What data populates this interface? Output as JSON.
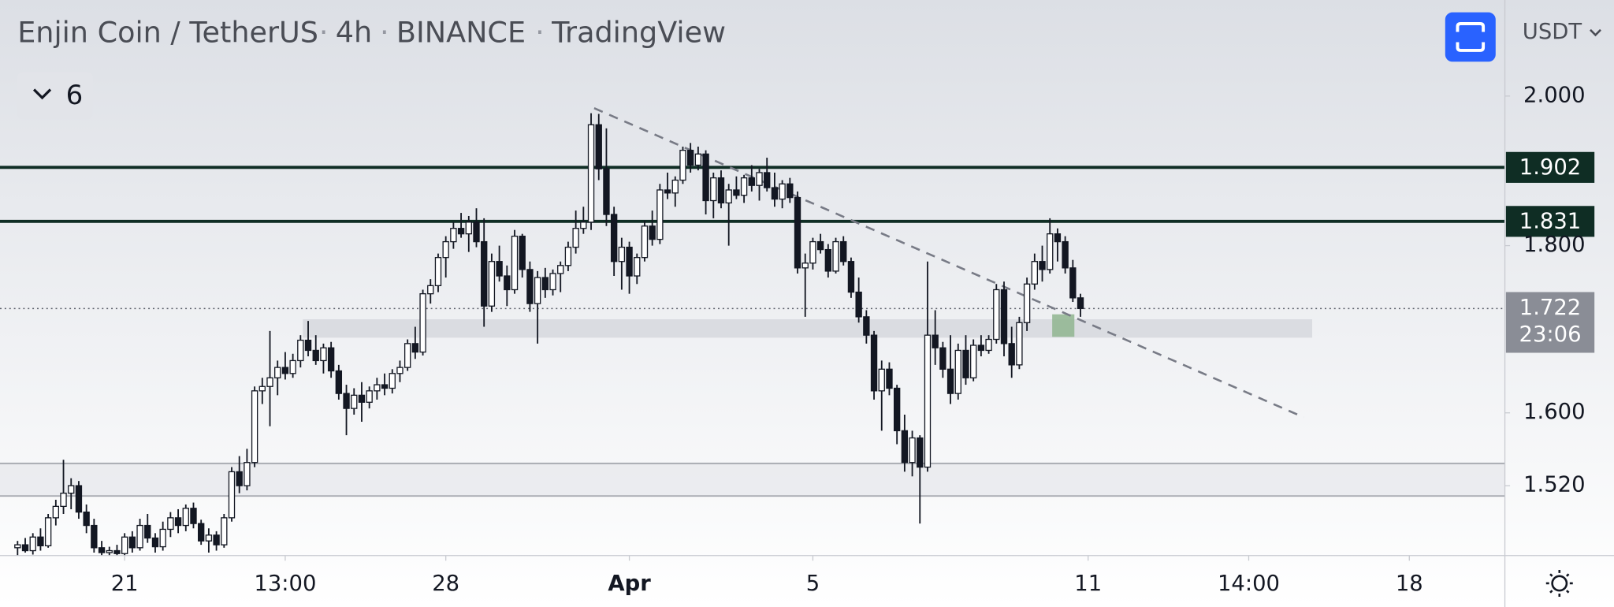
{
  "chart_data": {
    "type": "candlestick",
    "title": "Enjin Coin / TetherUS",
    "interval": "4h",
    "exchange": "BINANCE",
    "source": "TradingView",
    "collapsed_count": 6,
    "currency": "USDT",
    "log_scale": true,
    "up_color": "#ffffff",
    "down_color": "#131722",
    "wick_color": "#131722",
    "xlim": [
      -2.3,
      194.5
    ],
    "xticks": [
      {
        "value": 14,
        "label": "21"
      },
      {
        "value": 35,
        "label": "13:00"
      },
      {
        "value": 56,
        "label": "28"
      },
      {
        "value": 80,
        "label": "Apr"
      },
      {
        "value": 104,
        "label": "5"
      },
      {
        "value": 140,
        "label": "11"
      },
      {
        "value": 161,
        "label": "14:00"
      },
      {
        "value": 182,
        "label": "18"
      }
    ],
    "ylim": [
      1.447,
      2.14
    ],
    "yticks": [
      {
        "value": 2,
        "label": "2.000"
      },
      {
        "value": 1.8,
        "label": "1.800"
      },
      {
        "value": 1.6,
        "label": "1.600"
      },
      {
        "value": 1.52,
        "label": "1.520"
      }
    ],
    "levels": [
      1.902,
      1.831
    ],
    "level_color": "#0f2d24",
    "last_price": 1.722,
    "last_price_countdown": "23:06",
    "trendline": {
      "x": [
        75.4,
        168.2
      ],
      "y": [
        1.983,
        1.595
      ]
    },
    "zones": [
      {
        "x": [
          37.3,
          169.3
        ],
        "y": [
          1.687,
          1.709
        ],
        "color": "#d6d8dd"
      },
      {
        "x": [
          -2.3,
          194.5
        ],
        "y": [
          1.509,
          1.544
        ],
        "color": "#e9eaed"
      },
      {
        "x": [
          135.3,
          138.2
        ],
        "y": [
          1.688,
          1.715
        ],
        "color": "#8fb58f"
      }
    ],
    "candles": [
      [
        1.455,
        1.462,
        1.447,
        1.458
      ],
      [
        1.458,
        1.465,
        1.45,
        1.452
      ],
      [
        1.452,
        1.47,
        1.448,
        1.466
      ],
      [
        1.466,
        1.475,
        1.452,
        1.457
      ],
      [
        1.457,
        1.49,
        1.455,
        1.486
      ],
      [
        1.486,
        1.505,
        1.478,
        1.498
      ],
      [
        1.498,
        1.548,
        1.49,
        1.512
      ],
      [
        1.512,
        1.528,
        1.495,
        1.52
      ],
      [
        1.52,
        1.525,
        1.485,
        1.492
      ],
      [
        1.492,
        1.5,
        1.47,
        1.478
      ],
      [
        1.478,
        1.485,
        1.45,
        1.455
      ],
      [
        1.455,
        1.462,
        1.447,
        1.45
      ],
      [
        1.45,
        1.456,
        1.447,
        1.452
      ],
      [
        1.452,
        1.458,
        1.447,
        1.449
      ],
      [
        1.449,
        1.47,
        1.447,
        1.466
      ],
      [
        1.466,
        1.472,
        1.45,
        1.455
      ],
      [
        1.455,
        1.485,
        1.452,
        1.478
      ],
      [
        1.478,
        1.49,
        1.46,
        1.465
      ],
      [
        1.465,
        1.47,
        1.45,
        1.456
      ],
      [
        1.456,
        1.482,
        1.452,
        1.474
      ],
      [
        1.474,
        1.492,
        1.466,
        1.486
      ],
      [
        1.486,
        1.495,
        1.47,
        1.478
      ],
      [
        1.478,
        1.5,
        1.472,
        1.496
      ],
      [
        1.496,
        1.502,
        1.475,
        1.48
      ],
      [
        1.48,
        1.484,
        1.458,
        1.462
      ],
      [
        1.462,
        1.475,
        1.45,
        1.468
      ],
      [
        1.468,
        1.472,
        1.452,
        1.458
      ],
      [
        1.458,
        1.49,
        1.455,
        1.486
      ],
      [
        1.486,
        1.54,
        1.482,
        1.535
      ],
      [
        1.535,
        1.552,
        1.512,
        1.52
      ],
      [
        1.52,
        1.56,
        1.515,
        1.545
      ],
      [
        1.545,
        1.63,
        1.54,
        1.625
      ],
      [
        1.625,
        1.64,
        1.61,
        1.63
      ],
      [
        1.63,
        1.695,
        1.585,
        1.64
      ],
      [
        1.64,
        1.66,
        1.62,
        1.652
      ],
      [
        1.652,
        1.67,
        1.638,
        1.645
      ],
      [
        1.645,
        1.668,
        1.64,
        1.66
      ],
      [
        1.66,
        1.69,
        1.652,
        1.684
      ],
      [
        1.684,
        1.707,
        1.665,
        1.672
      ],
      [
        1.672,
        1.69,
        1.655,
        1.66
      ],
      [
        1.66,
        1.68,
        1.645,
        1.675
      ],
      [
        1.675,
        1.682,
        1.64,
        1.648
      ],
      [
        1.648,
        1.655,
        1.615,
        1.622
      ],
      [
        1.622,
        1.632,
        1.575,
        1.605
      ],
      [
        1.605,
        1.628,
        1.598,
        1.62
      ],
      [
        1.62,
        1.635,
        1.59,
        1.612
      ],
      [
        1.612,
        1.63,
        1.605,
        1.625
      ],
      [
        1.625,
        1.64,
        1.615,
        1.632
      ],
      [
        1.632,
        1.645,
        1.62,
        1.628
      ],
      [
        1.628,
        1.65,
        1.622,
        1.645
      ],
      [
        1.645,
        1.66,
        1.635,
        1.652
      ],
      [
        1.652,
        1.685,
        1.648,
        1.68
      ],
      [
        1.68,
        1.7,
        1.662,
        1.67
      ],
      [
        1.67,
        1.745,
        1.666,
        1.74
      ],
      [
        1.74,
        1.758,
        1.728,
        1.75
      ],
      [
        1.75,
        1.79,
        1.742,
        1.785
      ],
      [
        1.785,
        1.812,
        1.76,
        1.805
      ],
      [
        1.805,
        1.83,
        1.796,
        1.822
      ],
      [
        1.822,
        1.842,
        1.81,
        1.815
      ],
      [
        1.815,
        1.838,
        1.792,
        1.83
      ],
      [
        1.83,
        1.848,
        1.798,
        1.805
      ],
      [
        1.805,
        1.835,
        1.7,
        1.725
      ],
      [
        1.725,
        1.79,
        1.718,
        1.78
      ],
      [
        1.78,
        1.8,
        1.755,
        1.762
      ],
      [
        1.762,
        1.775,
        1.725,
        1.745
      ],
      [
        1.745,
        1.82,
        1.74,
        1.812
      ],
      [
        1.812,
        1.815,
        1.76,
        1.77
      ],
      [
        1.77,
        1.78,
        1.718,
        1.728
      ],
      [
        1.728,
        1.768,
        1.68,
        1.76
      ],
      [
        1.76,
        1.772,
        1.735,
        1.745
      ],
      [
        1.745,
        1.77,
        1.738,
        1.765
      ],
      [
        1.765,
        1.78,
        1.742,
        1.775
      ],
      [
        1.775,
        1.805,
        1.768,
        1.798
      ],
      [
        1.798,
        1.845,
        1.79,
        1.822
      ],
      [
        1.822,
        1.85,
        1.815,
        1.83
      ],
      [
        1.83,
        1.976,
        1.82,
        1.96
      ],
      [
        1.96,
        1.975,
        1.885,
        1.9
      ],
      [
        1.9,
        1.955,
        1.825,
        1.84
      ],
      [
        1.84,
        1.85,
        1.762,
        1.78
      ],
      [
        1.78,
        1.81,
        1.745,
        1.798
      ],
      [
        1.798,
        1.805,
        1.74,
        1.762
      ],
      [
        1.762,
        1.79,
        1.752,
        1.785
      ],
      [
        1.785,
        1.832,
        1.78,
        1.825
      ],
      [
        1.825,
        1.845,
        1.8,
        1.808
      ],
      [
        1.808,
        1.88,
        1.802,
        1.872
      ],
      [
        1.872,
        1.895,
        1.86,
        1.868
      ],
      [
        1.868,
        1.89,
        1.85,
        1.885
      ],
      [
        1.885,
        1.93,
        1.88,
        1.925
      ],
      [
        1.925,
        1.935,
        1.895,
        1.905
      ],
      [
        1.905,
        1.93,
        1.898,
        1.92
      ],
      [
        1.92,
        1.925,
        1.84,
        1.858
      ],
      [
        1.858,
        1.895,
        1.835,
        1.888
      ],
      [
        1.888,
        1.898,
        1.848,
        1.855
      ],
      [
        1.855,
        1.88,
        1.8,
        1.872
      ],
      [
        1.872,
        1.89,
        1.86,
        1.865
      ],
      [
        1.865,
        1.892,
        1.855,
        1.888
      ],
      [
        1.888,
        1.905,
        1.87,
        1.878
      ],
      [
        1.878,
        1.9,
        1.858,
        1.895
      ],
      [
        1.895,
        1.915,
        1.87,
        1.875
      ],
      [
        1.875,
        1.895,
        1.85,
        1.86
      ],
      [
        1.86,
        1.885,
        1.848,
        1.88
      ],
      [
        1.88,
        1.888,
        1.855,
        1.862
      ],
      [
        1.862,
        1.87,
        1.765,
        1.772
      ],
      [
        1.772,
        1.79,
        1.712,
        1.778
      ],
      [
        1.778,
        1.81,
        1.77,
        1.805
      ],
      [
        1.805,
        1.815,
        1.79,
        1.795
      ],
      [
        1.795,
        1.802,
        1.76,
        1.768
      ],
      [
        1.768,
        1.81,
        1.765,
        1.805
      ],
      [
        1.805,
        1.812,
        1.775,
        1.78
      ],
      [
        1.78,
        1.785,
        1.735,
        1.742
      ],
      [
        1.742,
        1.76,
        1.705,
        1.712
      ],
      [
        1.712,
        1.72,
        1.68,
        1.69
      ],
      [
        1.69,
        1.695,
        1.615,
        1.625
      ],
      [
        1.625,
        1.66,
        1.58,
        1.65
      ],
      [
        1.65,
        1.658,
        1.62,
        1.628
      ],
      [
        1.628,
        1.632,
        1.565,
        1.58
      ],
      [
        1.58,
        1.598,
        1.535,
        1.545
      ],
      [
        1.545,
        1.58,
        1.53,
        1.572
      ],
      [
        1.572,
        1.575,
        1.48,
        1.54
      ],
      [
        1.54,
        1.78,
        1.535,
        1.69
      ],
      [
        1.69,
        1.72,
        1.655,
        1.675
      ],
      [
        1.675,
        1.682,
        1.64,
        1.65
      ],
      [
        1.65,
        1.69,
        1.61,
        1.622
      ],
      [
        1.622,
        1.68,
        1.615,
        1.672
      ],
      [
        1.672,
        1.69,
        1.632,
        1.64
      ],
      [
        1.64,
        1.685,
        1.636,
        1.678
      ],
      [
        1.678,
        1.69,
        1.665,
        1.672
      ],
      [
        1.672,
        1.69,
        1.668,
        1.685
      ],
      [
        1.685,
        1.752,
        1.68,
        1.745
      ],
      [
        1.745,
        1.755,
        1.665,
        1.68
      ],
      [
        1.68,
        1.7,
        1.64,
        1.655
      ],
      [
        1.655,
        1.712,
        1.65,
        1.705
      ],
      [
        1.705,
        1.76,
        1.695,
        1.752
      ],
      [
        1.752,
        1.79,
        1.745,
        1.78
      ],
      [
        1.78,
        1.8,
        1.755,
        1.77
      ],
      [
        1.77,
        1.835,
        1.765,
        1.815
      ],
      [
        1.815,
        1.822,
        1.78,
        1.805
      ],
      [
        1.805,
        1.812,
        1.765,
        1.772
      ],
      [
        1.772,
        1.782,
        1.73,
        1.735
      ],
      [
        1.735,
        1.74,
        1.712,
        1.722
      ]
    ]
  }
}
